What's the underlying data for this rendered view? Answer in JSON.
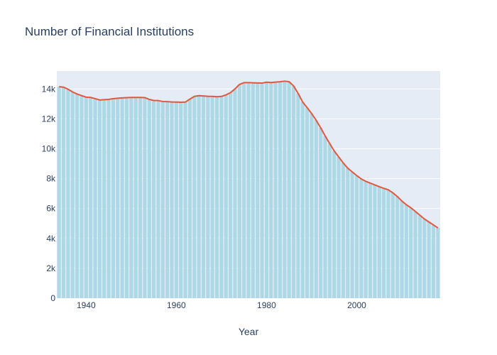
{
  "chart_data": {
    "type": "bar",
    "title": "Number of Financial Institutions",
    "xlabel": "Year",
    "ylabel": "",
    "x_start": 1934,
    "x_end": 2018,
    "xlim": [
      1933.5,
      2018.5
    ],
    "ylim": [
      0,
      15200
    ],
    "x_ticks": [
      1940,
      1960,
      1980,
      2000
    ],
    "y_ticks": [
      0,
      2000,
      4000,
      6000,
      8000,
      10000,
      12000,
      14000
    ],
    "y_tick_labels": [
      "0",
      "2k",
      "4k",
      "6k",
      "8k",
      "10k",
      "12k",
      "14k"
    ],
    "series": [
      {
        "type": "bar",
        "color": "#add8e6",
        "values": [
          14150,
          14120,
          13980,
          13800,
          13660,
          13550,
          13450,
          13430,
          13350,
          13260,
          13280,
          13300,
          13350,
          13380,
          13400,
          13420,
          13430,
          13430,
          13430,
          13420,
          13300,
          13230,
          13220,
          13160,
          13150,
          13130,
          13120,
          13110,
          13120,
          13320,
          13500,
          13550,
          13530,
          13510,
          13500,
          13480,
          13500,
          13600,
          13750,
          14000,
          14300,
          14420,
          14420,
          14410,
          14400,
          14390,
          14450,
          14430,
          14460,
          14480,
          14520,
          14480,
          14200,
          13700,
          13130,
          12750,
          12350,
          11900,
          11400,
          10850,
          10350,
          9850,
          9450,
          9050,
          8700,
          8450,
          8200,
          7980,
          7820,
          7700,
          7580,
          7460,
          7350,
          7250,
          7050,
          6800,
          6500,
          6250,
          6050,
          5800,
          5550,
          5300,
          5100,
          4900,
          4700
        ]
      },
      {
        "type": "line",
        "color": "#e4573c"
      }
    ]
  }
}
